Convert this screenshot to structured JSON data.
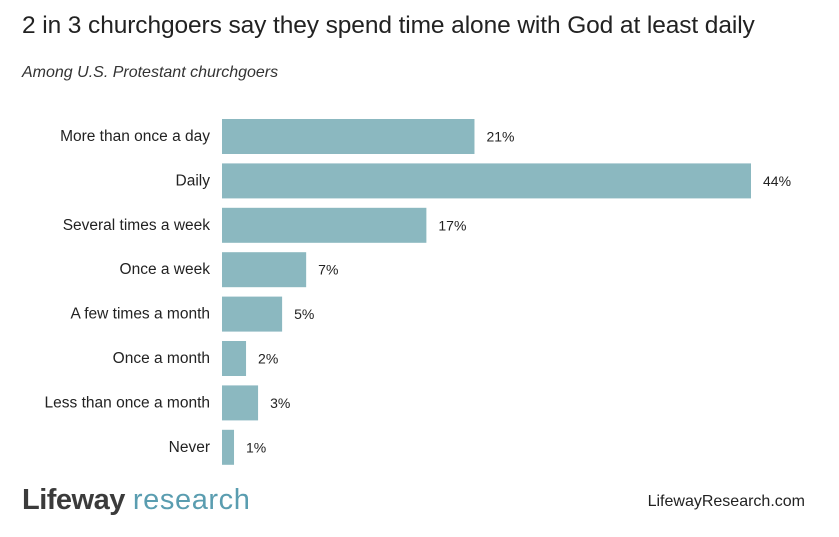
{
  "title": "2 in 3 churchgoers say they spend time alone with God at least daily",
  "subtitle": "Among U.S. Protestant churchgoers",
  "brand": {
    "word1": "Lifeway",
    "word2": "research",
    "accent": "#5a9db0"
  },
  "site_url": "LifewayResearch.com",
  "colors": {
    "bar": "#8bb8c0",
    "text": "#222222"
  },
  "chart_data": {
    "type": "bar",
    "orientation": "horizontal",
    "categories": [
      "More than once a day",
      "Daily",
      "Several times a week",
      "Once a week",
      "A few times a month",
      "Once a month",
      "Less than once a month",
      "Never"
    ],
    "values": [
      21,
      44,
      17,
      7,
      5,
      2,
      3,
      1
    ],
    "value_labels": [
      "21%",
      "44%",
      "17%",
      "7%",
      "5%",
      "2%",
      "3%",
      "1%"
    ],
    "xlim": [
      0,
      44
    ],
    "grid": false,
    "legend": "none"
  }
}
